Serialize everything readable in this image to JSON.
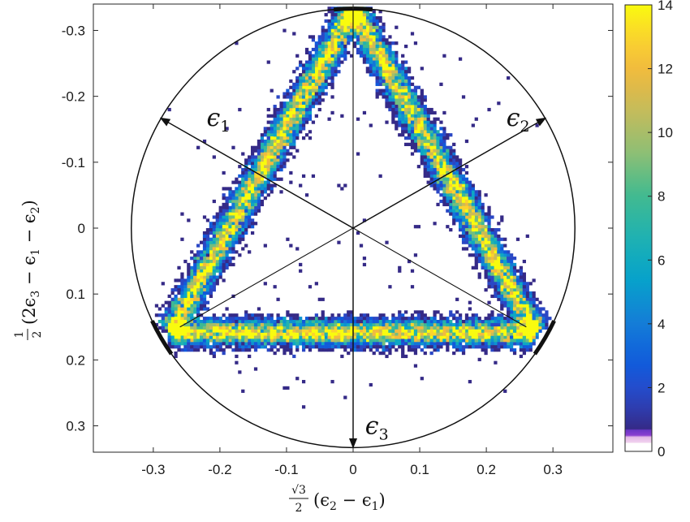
{
  "chart_data": {
    "type": "heatmap",
    "title": "",
    "xlabel": {
      "coef_num": "√3",
      "coef_den": "2",
      "expr": "(ϵ",
      "a_sub": "2",
      "mid": " − ϵ",
      "b_sub": "1",
      "close": ")"
    },
    "ylabel": {
      "coef_num": "1",
      "coef_den": "2",
      "expr": "(2ϵ",
      "a_sub": "3",
      "mid1": " − ϵ",
      "b_sub": "1",
      "mid2": " − ϵ",
      "c_sub": "2",
      "close": ")"
    },
    "xlim": [
      -0.39,
      0.39
    ],
    "ylim": [
      0.34,
      -0.34
    ],
    "y_reversed": true,
    "xticks": [
      -0.3,
      -0.2,
      -0.1,
      0,
      0.1,
      0.2,
      0.3
    ],
    "xtick_labels": [
      "-0.3",
      "-0.2",
      "-0.1",
      "0",
      "0.1",
      "0.2",
      "0.3"
    ],
    "yticks": [
      -0.3,
      -0.2,
      -0.1,
      0,
      0.1,
      0.2,
      0.3
    ],
    "ytick_labels": [
      "-0.3",
      "-0.2",
      "-0.1",
      "0",
      "0.1",
      "0.2",
      "0.3"
    ],
    "grid": false,
    "colorbar": {
      "range": [
        0,
        14
      ],
      "ticks": [
        0,
        2,
        4,
        6,
        8,
        10,
        12,
        14
      ],
      "tick_labels": [
        "0",
        "2",
        "4",
        "6",
        "8",
        "10",
        "12",
        "14"
      ],
      "colormap": "parula"
    },
    "circle": {
      "center": [
        0,
        0
      ],
      "radius": 0.333
    },
    "triangle_vertices": [
      [
        0,
        -0.333
      ],
      [
        -0.289,
        0.167
      ],
      [
        0.289,
        0.167
      ]
    ],
    "triangle_band": {
      "inner_vertices": [
        [
          0,
          -0.333
        ],
        [
          -0.26,
          0.15
        ],
        [
          0.26,
          0.15
        ]
      ]
    },
    "arrows": [
      {
        "label": "ϵ",
        "sub": "1",
        "from": [
          0,
          0
        ],
        "to": [
          -0.289,
          -0.167
        ]
      },
      {
        "label": "ϵ",
        "sub": "2",
        "from": [
          0,
          0
        ],
        "to": [
          0.289,
          -0.167
        ]
      },
      {
        "label": "ϵ",
        "sub": "3",
        "from": [
          0,
          0
        ],
        "to": [
          0,
          0.333
        ]
      }
    ],
    "arrow_lines_through_origin": [
      {
        "from": [
          -0.289,
          -0.167
        ],
        "to": [
          0.26,
          0.15
        ]
      },
      {
        "from": [
          0.289,
          -0.167
        ],
        "to": [
          -0.26,
          0.15
        ]
      },
      {
        "from": [
          0,
          -0.333
        ],
        "to": [
          0,
          0.333
        ]
      }
    ],
    "boundary_marks": [
      {
        "center_angle_deg": 90,
        "span_deg": 10
      },
      {
        "center_angle_deg": 210,
        "span_deg": 10
      },
      {
        "center_angle_deg": 330,
        "span_deg": 10
      }
    ],
    "colors": {
      "parula": [
        "#ffffff",
        "#e4b9e6",
        "#8a3fd0",
        "#352a87",
        "#0f5cdd",
        "#1481d6",
        "#06a4ca",
        "#2eb7a4",
        "#87bf77",
        "#d1bb59",
        "#fec832",
        "#f9fb0e"
      ]
    }
  }
}
